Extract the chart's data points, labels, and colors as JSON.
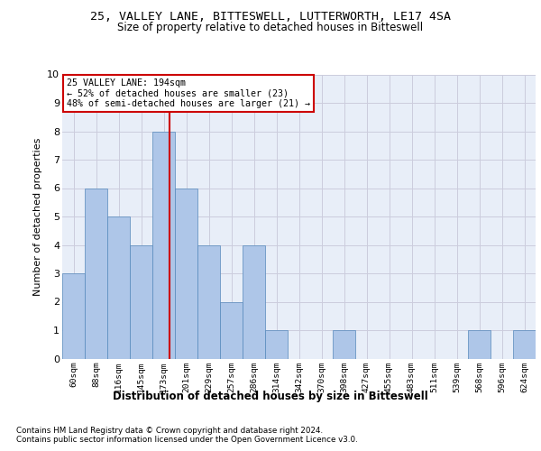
{
  "title1": "25, VALLEY LANE, BITTESWELL, LUTTERWORTH, LE17 4SA",
  "title2": "Size of property relative to detached houses in Bitteswell",
  "xlabel": "Distribution of detached houses by size in Bitteswell",
  "ylabel": "Number of detached properties",
  "bin_labels": [
    "60sqm",
    "88sqm",
    "116sqm",
    "145sqm",
    "173sqm",
    "201sqm",
    "229sqm",
    "257sqm",
    "286sqm",
    "314sqm",
    "342sqm",
    "370sqm",
    "398sqm",
    "427sqm",
    "455sqm",
    "483sqm",
    "511sqm",
    "539sqm",
    "568sqm",
    "596sqm",
    "624sqm"
  ],
  "bar_values": [
    3,
    6,
    5,
    4,
    8,
    6,
    4,
    2,
    4,
    1,
    0,
    0,
    1,
    0,
    0,
    0,
    0,
    0,
    1,
    0,
    1
  ],
  "bar_color": "#aec6e8",
  "bar_edge_color": "#5588bb",
  "grid_color": "#ccccdd",
  "annotation_line1": "25 VALLEY LANE: 194sqm",
  "annotation_line2": "← 52% of detached houses are smaller (23)",
  "annotation_line3": "48% of semi-detached houses are larger (21) →",
  "vline_color": "#cc0000",
  "annotation_box_color": "#cc0000",
  "ylim": [
    0,
    10
  ],
  "yticks": [
    0,
    1,
    2,
    3,
    4,
    5,
    6,
    7,
    8,
    9,
    10
  ],
  "footer1": "Contains HM Land Registry data © Crown copyright and database right 2024.",
  "footer2": "Contains public sector information licensed under the Open Government Licence v3.0.",
  "plot_bg_color": "#e8eef8"
}
